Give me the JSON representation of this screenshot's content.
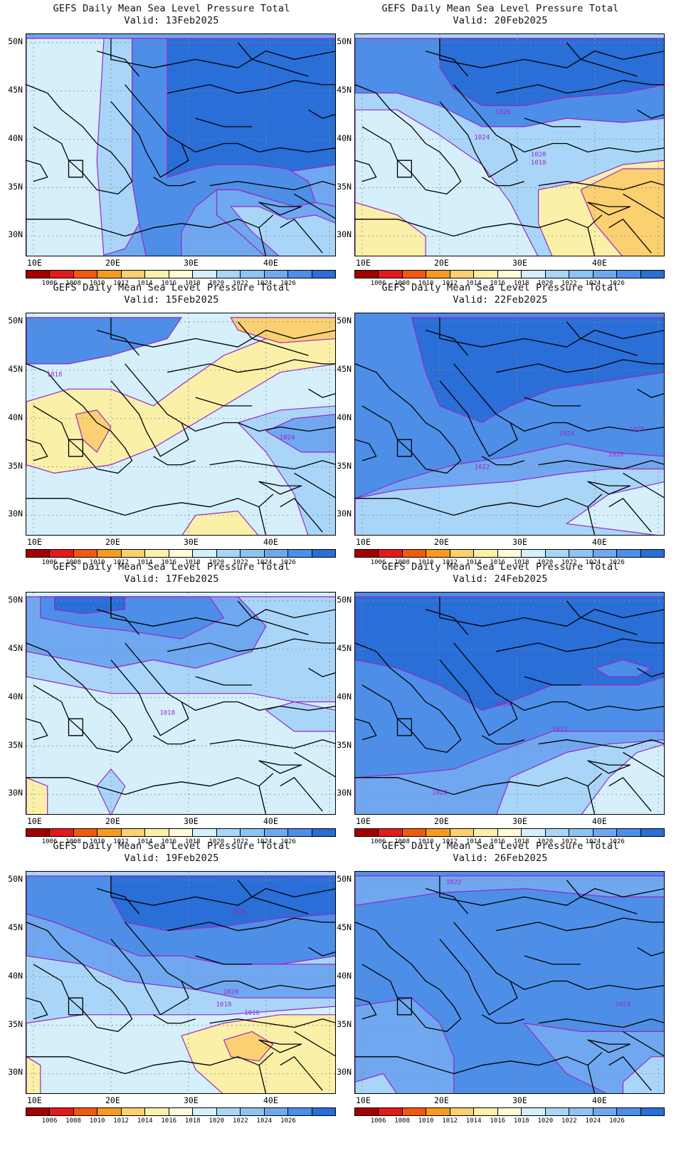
{
  "panels": [
    {
      "title": "GEFS Daily Mean Sea Level Pressure Total",
      "valid": "Valid: 13Feb2025",
      "base": "#6fa8f0",
      "regions": [
        {
          "color": "#2a6ed8",
          "poly": "[[20,1],[44,1],[44,31],[36,33],[32,31],[27,31],[24,32],[20,34]]"
        },
        {
          "color": "#4d8ee8",
          "poly": "[[15,1],[20,1],[20,34],[22,33],[24,32],[27,31],[32,31],[37,32],[40,35],[41,40],[38,41],[34,39],[30,37],[27,37],[24,41],[22,47],[22,53],[17,53],[16,45],[15,35]]"
        },
        {
          "color": "#a9d6f8",
          "poly": "[[0,1],[15,1],[15,35],[16,45],[14,51],[10,53],[0,53]]"
        },
        {
          "color": "#d5f0fb",
          "poly": "[[0,1],[11,1],[10,30],[11,53],[0,53]]"
        },
        {
          "color": "#6fa8f0",
          "poly": "[[27,37],[30,37],[34,39],[38,41],[41,40],[44,41],[44,53],[34,53],[30,47],[27,43]]"
        },
        {
          "color": "#a9d6f8",
          "poly": "[[29,41],[33,41],[37,44],[41,43],[44,45],[44,53],[36,53],[32,47]]"
        }
      ],
      "labels": []
    },
    {
      "title": "GEFS Daily Mean Sea Level Pressure Total",
      "valid": "Valid: 20Feb2025",
      "base": "#a9d6f8",
      "regions": [
        {
          "color": "#4d8ee8",
          "poly": "[[0,1],[44,1],[44,20],[38,21],[30,20],[24,22],[18,22],[12,17],[6,14],[0,14]]"
        },
        {
          "color": "#2a6ed8",
          "poly": "[[12,1],[44,1],[44,12],[38,14],[30,15],[24,17],[18,17],[14,13],[12,8]]"
        },
        {
          "color": "#d5f0fb",
          "poly": "[[0,18],[6,18],[12,24],[18,31],[22,40],[26,53],[0,53]]"
        },
        {
          "color": "#fbf0a8",
          "poly": "[[0,40],[6,43],[10,48],[10,53],[0,53]]"
        },
        {
          "color": "#fbf0a8",
          "poly": "[[26,37],[32,35],[38,31],[44,30],[44,53],[28,53],[26,45]]"
        },
        {
          "color": "#fbd070",
          "poly": "[[32,37],[38,32],[44,32],[44,53],[38,53],[34,45]]"
        }
      ],
      "labels": [
        {
          "text": "1026",
          "x": 21,
          "y": 19
        },
        {
          "text": "1024",
          "x": 18,
          "y": 25
        },
        {
          "text": "1020",
          "x": 26,
          "y": 29
        },
        {
          "text": "1018",
          "x": 26,
          "y": 31
        }
      ]
    },
    {
      "title": "GEFS Daily Mean Sea Level Pressure Total",
      "valid": "Valid: 15Feb2025",
      "base": "#d5f0fb",
      "regions": [
        {
          "color": "#4d8ee8",
          "poly": "[[0,1],[22,1],[20,6],[12,10],[6,12],[0,12]]"
        },
        {
          "color": "#fbf0a8",
          "poly": "[[0,21],[6,18],[12,18],[18,22],[22,17],[28,10],[34,6],[44,4],[44,12],[36,14],[30,20],[24,26],[18,32],[12,36],[4,38],[0,36]]"
        },
        {
          "color": "#fbd070",
          "poly": "[[29,1],[44,1],[44,6],[36,7],[30,4]]"
        },
        {
          "color": "#fbd070",
          "poly": "[[7,24],[10,23],[12,27],[10,33],[8,30]]"
        },
        {
          "color": "#a9d6f8",
          "poly": "[[30,26],[36,23],[44,22],[44,53],[40,53],[38,43],[34,33]]"
        },
        {
          "color": "#6fa8f0",
          "poly": "[[34,28],[38,25],[44,24],[44,33],[39,33]]"
        },
        {
          "color": "#fbf0a8",
          "poly": "[[22,53],[24,48],[30,47],[33,53]]"
        }
      ],
      "labels": [
        {
          "text": "1018",
          "x": 4,
          "y": 15
        },
        {
          "text": "1024",
          "x": 37,
          "y": 30
        }
      ]
    },
    {
      "title": "GEFS Daily Mean Sea Level Pressure Total",
      "valid": "Valid: 22Feb2025",
      "base": "#4d8ee8",
      "regions": [
        {
          "color": "#2a6ed8",
          "poly": "[[8,1],[44,1],[44,14],[36,16],[28,18],[22,22],[18,26],[12,22],[10,14]]"
        },
        {
          "color": "#6fa8f0",
          "poly": "[[0,44],[6,40],[14,36],[22,34],[30,31],[36,33],[44,34],[44,53],[0,53]]"
        },
        {
          "color": "#a9d6f8",
          "poly": "[[0,44],[6,42],[14,41],[22,40],[30,38],[36,37],[44,37],[44,53],[0,53]]"
        },
        {
          "color": "#d5f0fb",
          "poly": "[[30,50],[36,43],[44,40],[44,53]]"
        }
      ],
      "labels": [
        {
          "text": "1026",
          "x": 40,
          "y": 28
        },
        {
          "text": "1024",
          "x": 30,
          "y": 29
        },
        {
          "text": "1022",
          "x": 18,
          "y": 37
        },
        {
          "text": "1020",
          "x": 37,
          "y": 34
        }
      ]
    },
    {
      "title": "GEFS Daily Mean Sea Level Pressure Total",
      "valid": "Valid: 17Feb2025",
      "base": "#d5f0fb",
      "regions": [
        {
          "color": "#6fa8f0",
          "poly": "[[0,1],[30,1],[34,8],[32,14],[24,18],[18,16],[12,18],[6,16],[0,14]]"
        },
        {
          "color": "#4d8ee8",
          "poly": "[[2,1],[26,1],[28,6],[22,11],[14,9],[8,8],[2,6]]"
        },
        {
          "color": "#2a6ed8",
          "poly": "[[4,1],[14,1],[14,4],[8,5],[4,4]]"
        },
        {
          "color": "#a9d6f8",
          "poly": "[[0,14],[6,16],[12,18],[18,16],[24,18],[32,14],[34,8],[30,1],[44,1],[44,26],[38,26],[32,24],[24,24],[18,24],[12,24],[6,22],[0,20]]"
        },
        {
          "color": "#a9d6f8",
          "poly": "[[34,28],[38,26],[44,28],[44,33],[38,33]]"
        },
        {
          "color": "#a9d6f8",
          "poly": "[[10,46],[12,42],[14,46],[12,53]]"
        },
        {
          "color": "#fbf0a8",
          "poly": "[[0,44],[3,46],[3,53],[0,53]]"
        }
      ],
      "labels": [
        {
          "text": "1018",
          "x": 20,
          "y": 29
        }
      ]
    },
    {
      "title": "GEFS Daily Mean Sea Level Pressure Total",
      "valid": "Valid: 24Feb2025",
      "base": "#4d8ee8",
      "regions": [
        {
          "color": "#2a6ed8",
          "poly": "[[0,1],[44,1],[44,20],[40,22],[34,22],[28,22],[22,26],[18,28],[12,22],[6,18],[0,16]]"
        },
        {
          "color": "#4d8ee8",
          "poly": "[[34,18],[38,16],[42,18],[40,20],[36,20]]"
        },
        {
          "color": "#6fa8f0",
          "poly": "[[0,44],[8,43],[14,42],[20,38],[28,33],[36,33],[44,33],[44,53],[0,53]]"
        },
        {
          "color": "#a9d6f8",
          "poly": "[[20,53],[22,44],[30,38],[36,36],[44,35],[44,53]]"
        },
        {
          "color": "#d5f0fb",
          "poly": "[[32,53],[36,44],[40,38],[44,36],[44,53]]"
        }
      ],
      "labels": [
        {
          "text": "1024",
          "x": 21,
          "y": 27
        },
        {
          "text": "1022",
          "x": 29,
          "y": 33
        },
        {
          "text": "1022",
          "x": 12,
          "y": 48
        }
      ]
    },
    {
      "title": "GEFS Daily Mean Sea Level Pressure Total",
      "valid": "Valid: 19Feb2025",
      "base": "#a9d6f8",
      "regions": [
        {
          "color": "#4d8ee8",
          "poly": "[[0,1],[44,1],[44,20],[36,22],[28,22],[22,20],[16,20],[10,16],[4,12],[0,10]]"
        },
        {
          "color": "#2a6ed8",
          "poly": "[[12,1],[44,1],[44,10],[36,11],[28,13],[20,14],[14,12],[12,6]]"
        },
        {
          "color": "#6fa8f0",
          "poly": "[[0,20],[8,22],[14,26],[24,28],[30,30],[38,30],[44,30],[44,22],[36,22],[28,22],[22,20],[16,20],[10,16],[4,12],[0,10]]"
        },
        {
          "color": "#d5f0fb",
          "poly": "[[0,36],[8,34],[18,34],[28,34],[44,32],[44,53],[0,53]]"
        },
        {
          "color": "#fbf0a8",
          "poly": "[[22,39],[28,36],[36,34],[44,34],[44,53],[28,53],[24,47]]"
        },
        {
          "color": "#fbd070",
          "poly": "[[28,40],[32,38],[35,41],[33,45],[29,44]]"
        },
        {
          "color": "#fbf0a8",
          "poly": "[[0,44],[2,46],[2,53],[0,53]]"
        }
      ],
      "labels": [
        {
          "text": "1026",
          "x": 30,
          "y": 10
        },
        {
          "text": "1020",
          "x": 29,
          "y": 29
        },
        {
          "text": "1018",
          "x": 28,
          "y": 32
        },
        {
          "text": "1016",
          "x": 32,
          "y": 34
        }
      ]
    },
    {
      "title": "GEFS Daily Mean Sea Level Pressure Total",
      "valid": "Valid: 26Feb2025",
      "base": "#4d8ee8",
      "regions": [
        {
          "color": "#6fa8f0",
          "poly": "[[0,1],[44,1],[44,6],[36,6],[24,4],[12,5],[0,8]]"
        },
        {
          "color": "#6fa8f0",
          "poly": "[[0,32],[8,30],[12,36],[14,44],[14,53],[0,53]]"
        },
        {
          "color": "#6fa8f0",
          "poly": "[[24,36],[32,38],[40,38],[44,38],[44,53],[36,53],[30,48]]"
        },
        {
          "color": "#a9d6f8",
          "poly": "[[0,50],[4,48],[6,53],[0,53]]"
        },
        {
          "color": "#a9d6f8",
          "poly": "[[38,50],[42,44],[44,44],[44,53],[38,53]]"
        }
      ],
      "labels": [
        {
          "text": "1022",
          "x": 14,
          "y": 3
        },
        {
          "text": "1024",
          "x": 38,
          "y": 32
        }
      ]
    }
  ],
  "lat_labels": [
    "50N",
    "45N",
    "40N",
    "35N",
    "30N"
  ],
  "lon_labels": [
    "10E",
    "20E",
    "30E",
    "40E"
  ],
  "colorbar": {
    "colors": [
      "#a40000",
      "#e21a1a",
      "#f05a10",
      "#f79a20",
      "#fbd070",
      "#fbf0a8",
      "#fffbd8",
      "#d5f0fb",
      "#a9d6f8",
      "#8cc4f4",
      "#6fa8f0",
      "#4d8ee8",
      "#2a6ed8"
    ],
    "labels": [
      "1006",
      "1008",
      "1010",
      "1012",
      "1014",
      "1016",
      "1018",
      "1020",
      "1022",
      "1024",
      "1026"
    ]
  },
  "contour_color": "#9b27c9"
}
